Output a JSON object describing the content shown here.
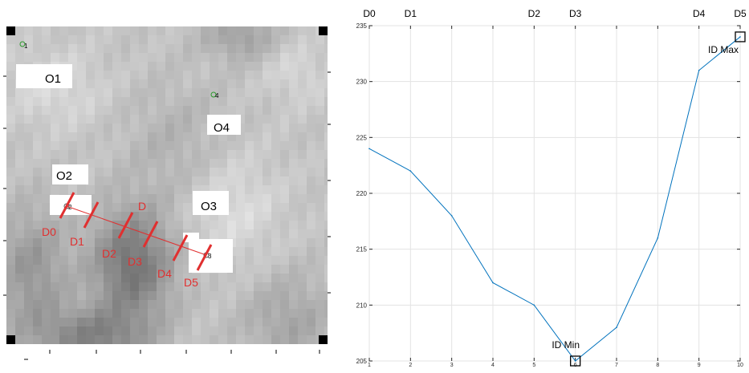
{
  "map": {
    "object_labels": [
      "O1",
      "O2",
      "O3",
      "O4"
    ],
    "point_labels": [
      "1",
      "2",
      "3",
      "4"
    ],
    "section_labels": [
      "D0",
      "D1",
      "D2",
      "D3",
      "D4",
      "D5"
    ],
    "line_label": "D",
    "colors": {
      "section": "#e03030",
      "point": "#2a9a2a",
      "marker": "#000000"
    }
  },
  "chart_data": {
    "type": "line",
    "title": "",
    "xlabel": "",
    "ylabel": "",
    "x": [
      1,
      2,
      3,
      4,
      5,
      6,
      7,
      8,
      9,
      10
    ],
    "series": [
      {
        "values": [
          224,
          222,
          218,
          212,
          210,
          205,
          208,
          216,
          231,
          234
        ],
        "color": "#0072bd"
      }
    ],
    "xlim": [
      1,
      10
    ],
    "ylim": [
      205,
      235
    ],
    "xticks": [
      1,
      2,
      3,
      4,
      5,
      6,
      7,
      8,
      9,
      10
    ],
    "yticks": [
      205,
      210,
      215,
      220,
      225,
      230,
      235
    ],
    "grid": true,
    "top_labels": [
      {
        "text": "D0",
        "x": 1
      },
      {
        "text": "D1",
        "x": 2
      },
      {
        "text": "D2",
        "x": 5
      },
      {
        "text": "D3",
        "x": 6
      },
      {
        "text": "D4",
        "x": 9
      },
      {
        "text": "D5",
        "x": 10
      }
    ],
    "annotations": [
      {
        "text": "ID Min",
        "x": 6,
        "y": 205
      },
      {
        "text": "ID Max",
        "x": 10,
        "y": 234
      }
    ]
  }
}
